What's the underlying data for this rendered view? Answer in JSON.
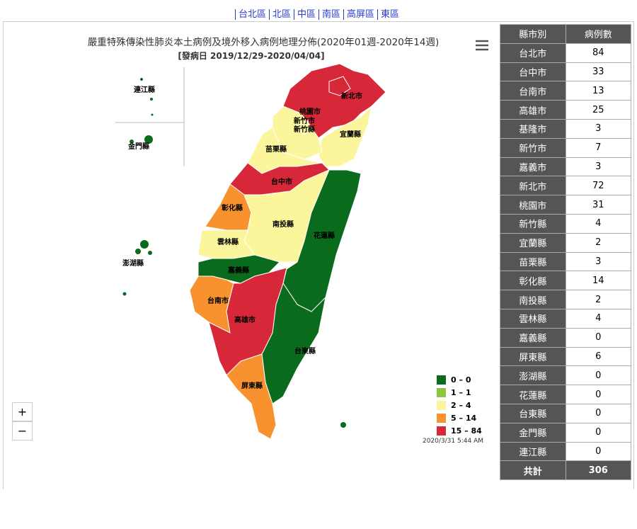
{
  "nav": [
    "台北區",
    "北區",
    "中區",
    "南區",
    "高屏區",
    "東區"
  ],
  "map": {
    "title": "嚴重特殊傳染性肺炎本土病例及境外移入病例地理分佈(2020年01週-2020年14週)",
    "subtitle": "[發病日 2019/12/29-2020/04/04]",
    "timestamp": "2020/3/31 5:44 AM",
    "zoom": [
      "+",
      "−"
    ],
    "region_labels": [
      "新北市",
      "桃園市",
      "新竹市",
      "新竹縣",
      "宜蘭縣",
      "苗栗縣",
      "台中市",
      "彰化縣",
      "南投縣",
      "花蓮縣",
      "雲林縣",
      "嘉義縣",
      "台南市",
      "高雄市",
      "台東縣",
      "屏東縣",
      "澎湖縣",
      "金門縣",
      "連江縣"
    ],
    "legend": [
      {
        "label": "0 – 0",
        "color": "#0b6b1c"
      },
      {
        "label": "1 – 1",
        "color": "#8dc63f"
      },
      {
        "label": "2 – 4",
        "color": "#fbf59b"
      },
      {
        "label": "5 – 14",
        "color": "#f7922e"
      },
      {
        "label": "15 – 84",
        "color": "#d7283a"
      }
    ]
  },
  "table": {
    "header": [
      "縣市別",
      "病例數"
    ],
    "rows": [
      [
        "台北市",
        84
      ],
      [
        "台中市",
        33
      ],
      [
        "台南市",
        13
      ],
      [
        "高雄市",
        25
      ],
      [
        "基隆市",
        3
      ],
      [
        "新竹市",
        7
      ],
      [
        "嘉義市",
        3
      ],
      [
        "新北市",
        72
      ],
      [
        "桃園市",
        31
      ],
      [
        "新竹縣",
        4
      ],
      [
        "宜蘭縣",
        2
      ],
      [
        "苗栗縣",
        3
      ],
      [
        "彰化縣",
        14
      ],
      [
        "南投縣",
        2
      ],
      [
        "雲林縣",
        4
      ],
      [
        "嘉義縣",
        0
      ],
      [
        "屏東縣",
        6
      ],
      [
        "澎湖縣",
        0
      ],
      [
        "花蓮縣",
        0
      ],
      [
        "台東縣",
        0
      ],
      [
        "金門縣",
        0
      ],
      [
        "連江縣",
        0
      ]
    ],
    "total": [
      "共計",
      306
    ]
  }
}
